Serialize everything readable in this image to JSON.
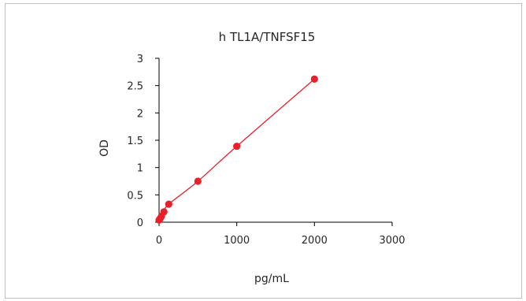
{
  "chart_data": {
    "type": "scatter",
    "title": "h  TL1A/TNFSF15",
    "xlabel": "pg/mL",
    "ylabel": "OD",
    "xlim": [
      0,
      3000
    ],
    "ylim": [
      0,
      3
    ],
    "x_ticks": [
      "0",
      "1000",
      "2000",
      "3000"
    ],
    "y_ticks": [
      "0",
      "0.5",
      "1",
      "1.5",
      "2",
      "2.5",
      "3"
    ],
    "grid": false,
    "legend": "none",
    "series": [
      {
        "x": [
          0,
          15.6,
          31.3,
          62.5,
          125,
          500,
          1000,
          2000
        ],
        "y": [
          0.04,
          0.07,
          0.11,
          0.19,
          0.33,
          0.75,
          1.39,
          2.62
        ],
        "trendline": true
      }
    ],
    "colors": {
      "series": "#e8202a",
      "axis": "#000000",
      "text": "#262626"
    }
  }
}
